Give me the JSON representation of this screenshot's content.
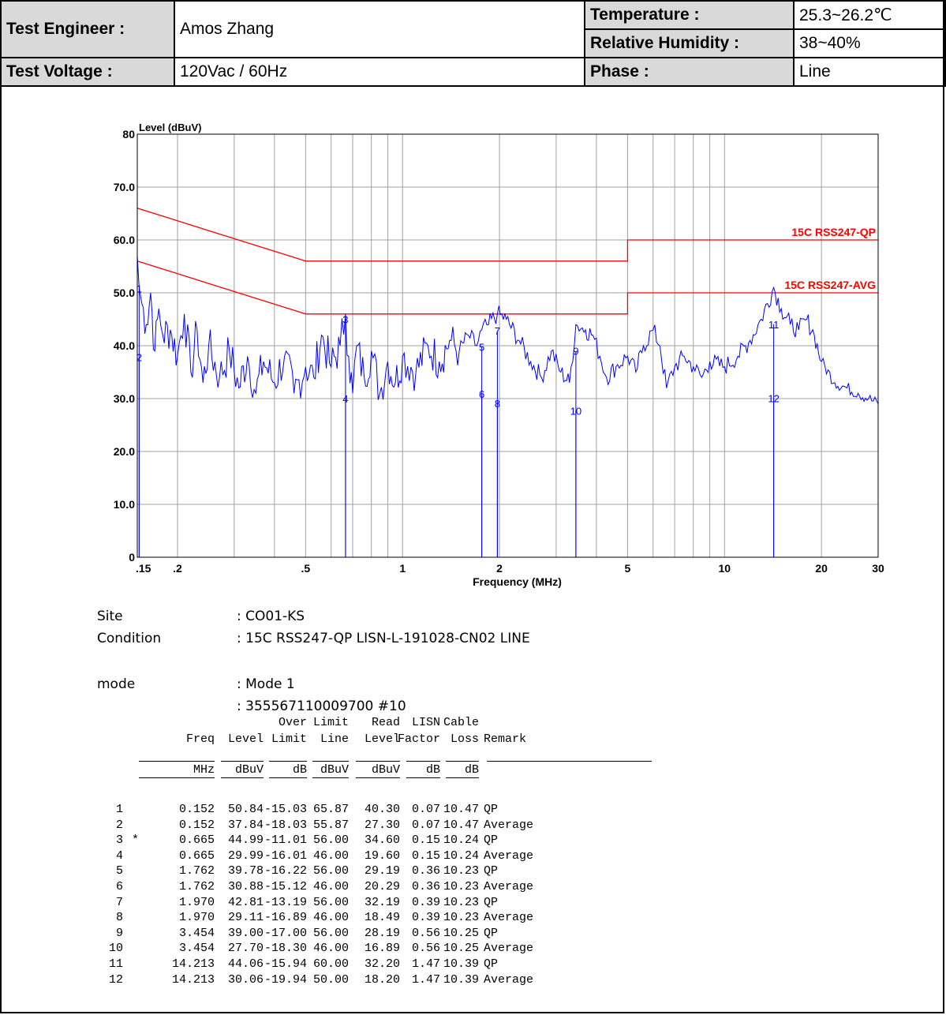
{
  "header": {
    "engineer_label": "Test Engineer :",
    "engineer_value": "Amos Zhang",
    "temperature_label": "Temperature :",
    "temperature_value": "25.3~26.2℃",
    "humidity_label": "Relative Humidity :",
    "humidity_value": "38~40%",
    "voltage_label": "Test Voltage :",
    "voltage_value": "120Vac / 60Hz",
    "phase_label": "Phase :",
    "phase_value": "Line"
  },
  "chart_data": {
    "type": "line",
    "ylabel": "Level (dBuV)",
    "xlabel": "Frequency (MHz)",
    "xscale": "log",
    "xlim": [
      0.15,
      30
    ],
    "ylim": [
      0,
      80
    ],
    "y_ticks": [
      "0",
      "10.0",
      "20.0",
      "30.0",
      "40.0",
      "50.0",
      "60.0",
      "70.0",
      "80"
    ],
    "x_ticks": [
      ".15",
      ".2",
      ".5",
      "1",
      "2",
      "5",
      "10",
      "20",
      "30"
    ],
    "x_tick_values": [
      0.15,
      0.2,
      0.5,
      1,
      2,
      5,
      10,
      20,
      30
    ],
    "grid": true,
    "limit_lines": [
      {
        "name": "15C RSS247-QP",
        "color": "#ff0000",
        "points": [
          [
            0.15,
            66
          ],
          [
            0.5,
            56
          ],
          [
            5,
            56
          ],
          [
            5,
            60
          ],
          [
            30,
            60
          ]
        ]
      },
      {
        "name": "15C RSS247-AVG",
        "color": "#ff0000",
        "points": [
          [
            0.15,
            56
          ],
          [
            0.5,
            46
          ],
          [
            5,
            46
          ],
          [
            5,
            50
          ],
          [
            30,
            50
          ]
        ]
      }
    ],
    "trace_color": "#0000ff",
    "trace": [
      [
        0.15,
        57
      ],
      [
        0.152,
        51
      ],
      [
        0.155,
        48
      ],
      [
        0.16,
        44
      ],
      [
        0.165,
        50
      ],
      [
        0.17,
        39
      ],
      [
        0.175,
        47
      ],
      [
        0.18,
        42
      ],
      [
        0.19,
        43
      ],
      [
        0.2,
        38
      ],
      [
        0.21,
        46
      ],
      [
        0.22,
        35
      ],
      [
        0.23,
        43
      ],
      [
        0.24,
        33
      ],
      [
        0.25,
        40
      ],
      [
        0.27,
        34
      ],
      [
        0.29,
        39
      ],
      [
        0.31,
        32
      ],
      [
        0.33,
        38
      ],
      [
        0.35,
        31
      ],
      [
        0.37,
        37
      ],
      [
        0.4,
        33
      ],
      [
        0.43,
        38
      ],
      [
        0.46,
        31
      ],
      [
        0.5,
        36
      ],
      [
        0.53,
        34
      ],
      [
        0.56,
        42
      ],
      [
        0.6,
        36
      ],
      [
        0.64,
        40
      ],
      [
        0.665,
        46
      ],
      [
        0.68,
        38
      ],
      [
        0.7,
        31
      ],
      [
        0.72,
        40
      ],
      [
        0.76,
        34
      ],
      [
        0.8,
        39
      ],
      [
        0.85,
        31
      ],
      [
        0.9,
        37
      ],
      [
        0.95,
        33
      ],
      [
        1.0,
        38
      ],
      [
        1.1,
        35
      ],
      [
        1.2,
        40
      ],
      [
        1.3,
        37
      ],
      [
        1.4,
        41
      ],
      [
        1.5,
        39
      ],
      [
        1.6,
        42
      ],
      [
        1.7,
        40
      ],
      [
        1.762,
        43
      ],
      [
        1.85,
        44
      ],
      [
        1.97,
        46
      ],
      [
        2.1,
        45
      ],
      [
        2.3,
        41
      ],
      [
        2.5,
        37
      ],
      [
        2.7,
        34
      ],
      [
        2.9,
        39
      ],
      [
        3.1,
        35
      ],
      [
        3.3,
        33
      ],
      [
        3.454,
        44
      ],
      [
        3.7,
        43
      ],
      [
        3.9,
        42
      ],
      [
        4.1,
        38
      ],
      [
        4.3,
        34
      ],
      [
        4.6,
        36
      ],
      [
        5.0,
        38
      ],
      [
        5.3,
        35
      ],
      [
        5.6,
        40
      ],
      [
        6.0,
        43
      ],
      [
        6.3,
        40
      ],
      [
        6.6,
        32
      ],
      [
        7.0,
        36
      ],
      [
        7.5,
        38
      ],
      [
        8.0,
        36
      ],
      [
        8.5,
        34
      ],
      [
        9.0,
        37
      ],
      [
        10,
        36
      ],
      [
        11,
        38
      ],
      [
        12,
        41
      ],
      [
        13,
        45
      ],
      [
        14.213,
        51
      ],
      [
        15,
        47
      ],
      [
        16,
        44
      ],
      [
        17,
        43
      ],
      [
        18,
        45
      ],
      [
        19,
        42
      ],
      [
        20,
        37
      ],
      [
        22,
        33
      ],
      [
        24,
        32
      ],
      [
        26,
        31
      ],
      [
        28,
        30
      ],
      [
        30,
        29
      ]
    ],
    "markers": [
      {
        "label": "1",
        "f": 0.152,
        "level": 50.84
      },
      {
        "label": "2",
        "f": 0.152,
        "level": 37.84
      },
      {
        "label": "3",
        "f": 0.665,
        "level": 44.99
      },
      {
        "label": "4",
        "f": 0.665,
        "level": 29.99
      },
      {
        "label": "5",
        "f": 1.762,
        "level": 39.78
      },
      {
        "label": "6",
        "f": 1.762,
        "level": 30.88
      },
      {
        "label": "7",
        "f": 1.97,
        "level": 42.81
      },
      {
        "label": "8",
        "f": 1.97,
        "level": 29.11
      },
      {
        "label": "9",
        "f": 3.454,
        "level": 39.0
      },
      {
        "label": "10",
        "f": 3.454,
        "level": 27.7
      },
      {
        "label": "11",
        "f": 14.213,
        "level": 44.06
      },
      {
        "label": "12",
        "f": 14.213,
        "level": 30.06
      }
    ]
  },
  "info": {
    "site_label": "Site",
    "site_value": ": CO01-KS",
    "condition_label": "Condition",
    "condition_value": ": 15C RSS247-QP LISN-L-191028-CN02 LINE",
    "mode_label": "mode",
    "mode_value": ": Mode 1",
    "serial_value": ": 355567110009700  #10"
  },
  "table": {
    "header_line1": [
      "",
      "",
      "",
      "Over",
      "Limit",
      "Read",
      "LISN",
      "Cable",
      ""
    ],
    "header_line2": [
      "",
      "Freq",
      "Level",
      "Limit",
      "Line",
      "Level",
      "Factor",
      "Loss",
      "Remark"
    ],
    "units": [
      "",
      "MHz",
      "dBuV",
      "dB",
      "dBuV",
      "dBuV",
      "dB",
      "dB",
      ""
    ],
    "rows": [
      [
        "1",
        "",
        "0.152",
        "50.84",
        "-15.03",
        "65.87",
        "40.30",
        "0.07",
        "10.47",
        "QP"
      ],
      [
        "2",
        "",
        "0.152",
        "37.84",
        "-18.03",
        "55.87",
        "27.30",
        "0.07",
        "10.47",
        "Average"
      ],
      [
        "3",
        "*",
        "0.665",
        "44.99",
        "-11.01",
        "56.00",
        "34.60",
        "0.15",
        "10.24",
        "QP"
      ],
      [
        "4",
        "",
        "0.665",
        "29.99",
        "-16.01",
        "46.00",
        "19.60",
        "0.15",
        "10.24",
        "Average"
      ],
      [
        "5",
        "",
        "1.762",
        "39.78",
        "-16.22",
        "56.00",
        "29.19",
        "0.36",
        "10.23",
        "QP"
      ],
      [
        "6",
        "",
        "1.762",
        "30.88",
        "-15.12",
        "46.00",
        "20.29",
        "0.36",
        "10.23",
        "Average"
      ],
      [
        "7",
        "",
        "1.970",
        "42.81",
        "-13.19",
        "56.00",
        "32.19",
        "0.39",
        "10.23",
        "QP"
      ],
      [
        "8",
        "",
        "1.970",
        "29.11",
        "-16.89",
        "46.00",
        "18.49",
        "0.39",
        "10.23",
        "Average"
      ],
      [
        "9",
        "",
        "3.454",
        "39.00",
        "-17.00",
        "56.00",
        "28.19",
        "0.56",
        "10.25",
        "QP"
      ],
      [
        "10",
        "",
        "3.454",
        "27.70",
        "-18.30",
        "46.00",
        "16.89",
        "0.56",
        "10.25",
        "Average"
      ],
      [
        "11",
        "",
        "14.213",
        "44.06",
        "-15.94",
        "60.00",
        "32.20",
        "1.47",
        "10.39",
        "QP"
      ],
      [
        "12",
        "",
        "14.213",
        "30.06",
        "-19.94",
        "50.00",
        "18.20",
        "1.47",
        "10.39",
        "Average"
      ]
    ]
  }
}
